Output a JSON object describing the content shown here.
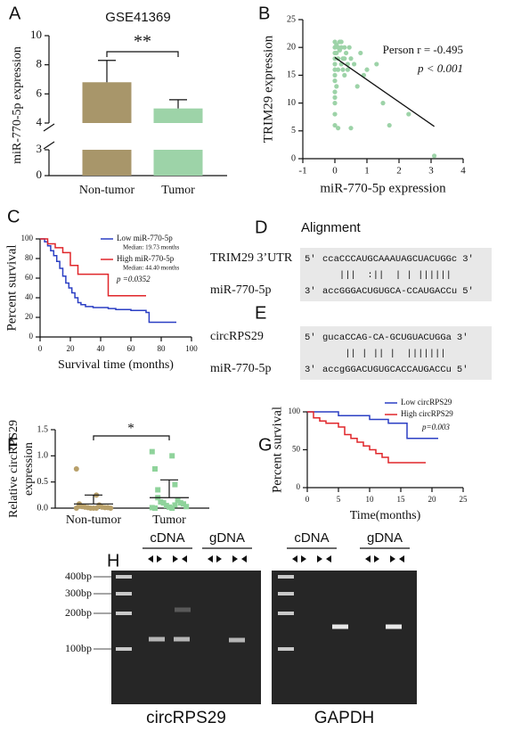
{
  "chart_data": [
    {
      "panel": "A",
      "type": "bar",
      "title": "GSE41369",
      "ylabel": "miR-770-5p expression",
      "categories": [
        "Non-tumor",
        "Tumor"
      ],
      "values": [
        6.8,
        5.0
      ],
      "errors": [
        1.5,
        0.6
      ],
      "colors": [
        "#a8966a",
        "#9dd3a8"
      ],
      "ylim": [
        0,
        10
      ],
      "yticks": [
        0,
        3,
        4,
        6,
        8,
        10
      ],
      "axis_break": [
        3,
        4
      ],
      "significance": "**"
    },
    {
      "panel": "B",
      "type": "scatter",
      "xlabel": "miR-770-5p expression",
      "ylabel": "TRIM29 expression",
      "annotations": [
        "Person r = -0.495",
        "p < 0.001"
      ],
      "color": "#9dd3a8",
      "x": [
        0,
        0,
        0,
        0,
        0,
        0,
        0,
        0,
        0,
        0,
        0,
        0,
        0.05,
        0.05,
        0.1,
        0.1,
        0.1,
        0.15,
        0.2,
        0.2,
        0.25,
        0.3,
        0.3,
        0.35,
        0.4,
        0.45,
        0.5,
        0.6,
        0.7,
        0.8,
        0.9,
        1.0,
        1.3,
        1.5,
        2.3,
        3.1,
        0.05,
        0.1,
        0.2,
        0.3,
        0.4,
        0.25,
        0.15,
        0.5,
        1.7,
        0
      ],
      "values": [
        20,
        19,
        18,
        17,
        16,
        15,
        14,
        12,
        10,
        8,
        6,
        21,
        20.5,
        19,
        18,
        20,
        16,
        19.5,
        17,
        21,
        18,
        20,
        15,
        19,
        16,
        20,
        18,
        17,
        13,
        19,
        15,
        16,
        17,
        10,
        8,
        0.5,
        13,
        5.5,
        20,
        18,
        17,
        16,
        21,
        5.5,
        6,
        11
      ],
      "trend_line": {
        "x": [
          0,
          3.1
        ],
        "y": [
          18.2,
          5.8
        ]
      },
      "xlim": [
        -1,
        4
      ],
      "xticks": [
        -1,
        0,
        1,
        2,
        3,
        4
      ],
      "ylim": [
        0,
        25
      ],
      "yticks": [
        0,
        5,
        10,
        15,
        20,
        25
      ]
    },
    {
      "panel": "C",
      "type": "line",
      "step": true,
      "xlabel": "Survival time (months)",
      "ylabel": "Percent survival",
      "series": [
        {
          "name": "Low miR-770-5p",
          "subtitle": "Median: 19.73 months",
          "color": "#2b3fc4",
          "x": [
            0,
            3,
            5,
            7,
            9,
            11,
            13,
            15,
            17,
            19,
            21,
            23,
            25,
            27,
            30,
            35,
            40,
            45,
            50,
            60,
            70,
            72,
            90
          ],
          "values": [
            100,
            97,
            93,
            88,
            83,
            77,
            70,
            62,
            55,
            50,
            45,
            40,
            35,
            33,
            31,
            30,
            30,
            29,
            28,
            27,
            25,
            15,
            15
          ]
        },
        {
          "name": "High miR-770-5p",
          "subtitle": "Median: 44.40 months",
          "color": "#e0262a",
          "x": [
            0,
            5,
            10,
            15,
            20,
            25,
            30,
            45,
            70
          ],
          "values": [
            100,
            95,
            91,
            86,
            73,
            64,
            64,
            42,
            42
          ]
        }
      ],
      "annotation": "p =0.0352",
      "xlim": [
        0,
        100
      ],
      "xticks": [
        0,
        20,
        40,
        60,
        80,
        100
      ],
      "ylim": [
        0,
        100
      ],
      "yticks": [
        0,
        20,
        40,
        60,
        80,
        100
      ]
    },
    {
      "panel": "F",
      "type": "strip",
      "ylabel": [
        "Relative circRPS29",
        "expression"
      ],
      "categories": [
        "Non-tumor",
        "Tumor"
      ],
      "points": [
        [
          0.75,
          0.25,
          0.08,
          0.05,
          0.03,
          0.02,
          0.02,
          0.01,
          0.01,
          0.01,
          0,
          0,
          0,
          0,
          0,
          0.04,
          0.06
        ],
        [
          1.08,
          1.0,
          0.75,
          0.45,
          0.35,
          0.15,
          0.12,
          0.1,
          0.1,
          0.08,
          0.05,
          0.03,
          0.02,
          0.01,
          0,
          0,
          0.06,
          0.2
        ]
      ],
      "colors": [
        "#b8a06a",
        "#8fd39b"
      ],
      "means": [
        0.08,
        0.2
      ],
      "sds": [
        0.17,
        0.34
      ],
      "ylim": [
        0,
        1.5
      ],
      "yticks": [
        {
          "value": 0,
          "label": "0.0"
        },
        {
          "value": 0.5,
          "label": "0.5"
        },
        {
          "value": 1,
          "label": "1.0"
        },
        {
          "value": 1.5,
          "label": "1.5"
        }
      ],
      "significance": "*"
    },
    {
      "panel": "G",
      "type": "line",
      "step": true,
      "xlabel": "Time(months)",
      "ylabel": "Percent survival",
      "series": [
        {
          "name": "Low circRPS29",
          "color": "#2b3fc4",
          "x": [
            0,
            5,
            10,
            13,
            16,
            21
          ],
          "values": [
            100,
            95,
            90,
            85,
            65,
            65
          ]
        },
        {
          "name": "High circRPS29",
          "color": "#e0262a",
          "x": [
            0,
            1,
            2,
            3,
            5,
            6,
            7,
            8,
            9,
            10,
            11,
            12,
            13,
            16,
            19
          ],
          "values": [
            100,
            92,
            88,
            85,
            80,
            70,
            65,
            60,
            55,
            50,
            45,
            40,
            33,
            33,
            33
          ]
        }
      ],
      "annotation": "p=0.003",
      "xlim": [
        0,
        25
      ],
      "xticks": [
        0,
        5,
        10,
        15,
        20,
        25
      ],
      "ylim": [
        0,
        100
      ],
      "yticks": [
        0,
        50,
        100
      ]
    }
  ],
  "alignment": {
    "title": "Alignment",
    "panels": [
      {
        "panel": "D",
        "target_label": "TRIM29 3’UTR",
        "target": [
          "5'",
          "ccaCCCAUGCAAAUAGCUACUGGc",
          "3'"
        ],
        "pairing": "   |||  :||  | | ||||||",
        "mirna_label": "miR-770-5p",
        "mirna": [
          "3'",
          "accGGGACUGUGCA-CCAUGACCu",
          "5'"
        ]
      },
      {
        "panel": "E",
        "target_label": "circRPS29",
        "target": [
          "5'",
          "gucaCCAG-CA-GCUGUACUGGa",
          "3'"
        ],
        "pairing": "    || | || |  |||||||",
        "mirna_label": "miR-770-5p",
        "mirna": [
          "3'",
          "accgGGACUGUGCACCAUGACCu",
          "5'"
        ]
      }
    ]
  },
  "gel": {
    "panel": "H",
    "ladder": [
      "400bp",
      "300bp",
      "200bp",
      "100bp"
    ],
    "blots": [
      {
        "name": "circRPS29",
        "groups": [
          "cDNA",
          "gDNA"
        ]
      },
      {
        "name": "GAPDH",
        "groups": [
          "cDNA",
          "gDNA"
        ]
      }
    ]
  }
}
